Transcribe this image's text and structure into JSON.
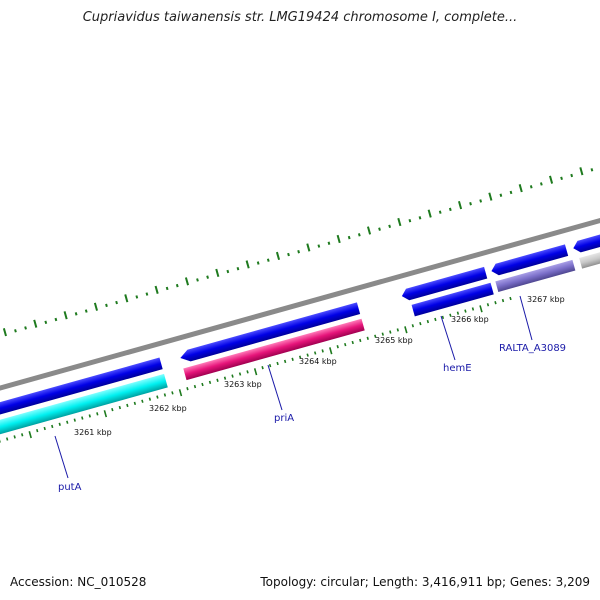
{
  "title": "Cupriavidus taiwanensis str. LMG19424 chromosome I, complete...",
  "footer": {
    "accession": "Accession: NC_010528",
    "topology": "Topology: circular; Length: 3,416,911 bp; Genes: 3,209"
  },
  "ticks": [
    "3261 kbp",
    "3262 kbp",
    "3263 kbp",
    "3264 kbp",
    "3265 kbp",
    "3266 kbp",
    "3267 kbp"
  ],
  "genes": [
    {
      "name": "putA",
      "color": "#0000e6",
      "cds_color": "#00e6e6"
    },
    {
      "name": "priA",
      "color": "#0000e6",
      "cds_color": "#e6147a"
    },
    {
      "name": "hemE",
      "color": "#0000e6"
    },
    {
      "name": "RALTA_A3089",
      "color": "#0000e6",
      "cds_color": "#7a6ec8"
    }
  ],
  "colors": {
    "backbone": "#808080",
    "gc_dots": "#1e7a1e",
    "tick_marks": "#1e7a1e",
    "label": "#1a1aa8"
  }
}
